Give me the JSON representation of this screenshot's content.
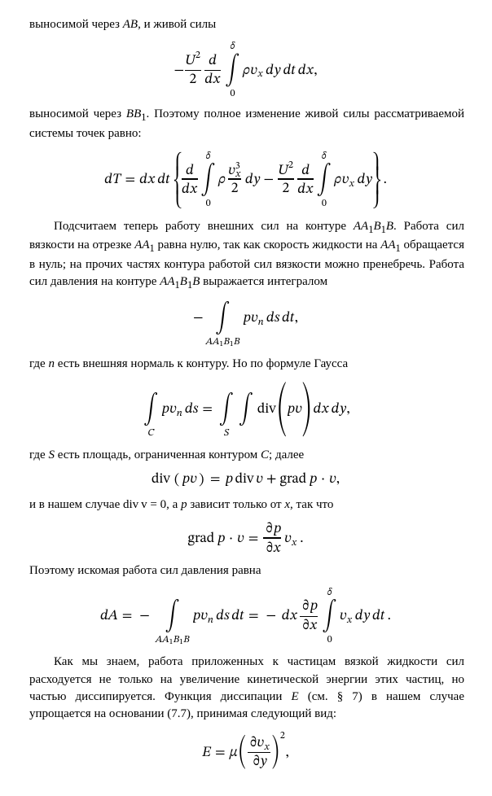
{
  "paragraphs": {
    "p1a": "выносимой через ",
    "p1b": ", и живой силы",
    "p2a": "выносимой через ",
    "p2b": ". Поэтому полное изменение живой силы рассматриваемой системы точек равно:",
    "p3a": "Подсчитаем теперь работу внешних сил на контуре ",
    "p3b": ". Работа сил вязкости на отрезке ",
    "p3c": " равна нулю, так как скорость жидкости на ",
    "p3d": " обращается в нуль; на прочих частях контура работой сил вязкости можно пренебречь. Работа сил давления на контуре ",
    "p3e": " выражается интегралом",
    "p4a": "где ",
    "p4b": " есть внешняя нормаль к контуру. Но по формуле Гаусса",
    "p5a": "где ",
    "p5b": " есть площадь, ограниченная контуром ",
    "p5c": "; далее",
    "p6a": "и в нашем случае ",
    "p6b": ", а ",
    "p6c": " зависит только от ",
    "p6d": ", так что",
    "p7": "Поэтому искомая работа сил давления равна",
    "p8a": "Как мы знаем, работа приложенных к частицам вязкой жидкости сил расходуется не только на увеличение кинетической энергии этих частиц, но частью диссипируется. Функция диссипации ",
    "p8b": " (см. § 7) в нашем случае упрощается на основании (7.7), принимая следующий вид:"
  },
  "inline": {
    "AB": "AB",
    "BB1": "BB",
    "sub1": "1",
    "AA1B1B": "AA",
    "B1B": "B",
    "B": "B",
    "AA1": "AA",
    "n": "n",
    "S": "S",
    "C": "C",
    "p": "p",
    "x": "x",
    "E": "E",
    "divv0": "div v = 0"
  },
  "style": {
    "text_color": "#000000",
    "background_color": "#ffffff",
    "body_font_size_pt": 11,
    "math_font_size_pt": 13
  }
}
